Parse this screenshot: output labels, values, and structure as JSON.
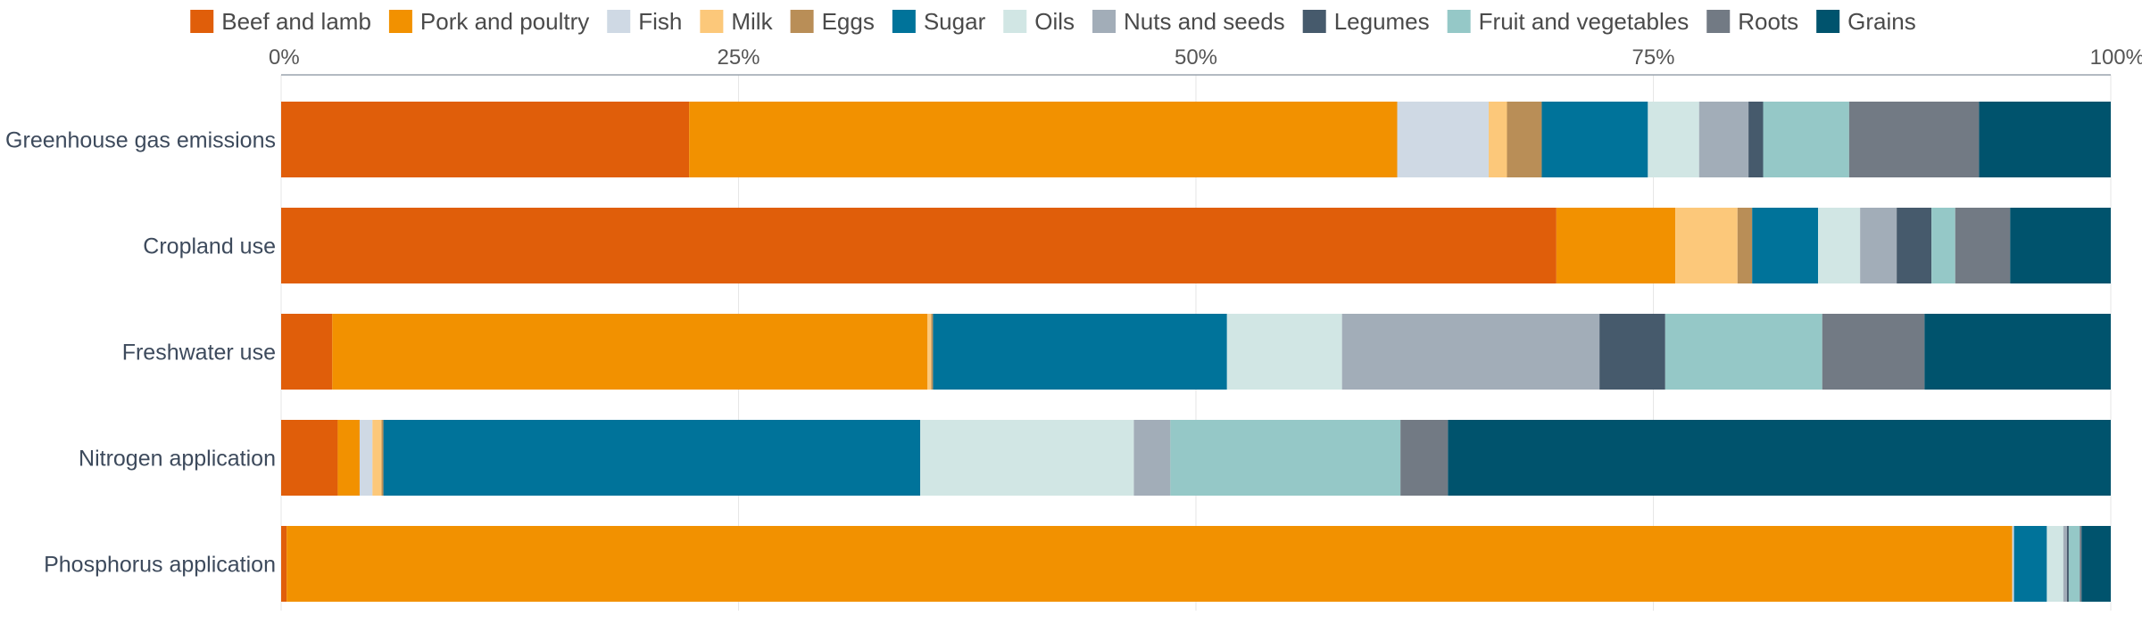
{
  "chart_data": {
    "type": "bar",
    "orientation": "horizontal",
    "stacked": true,
    "normalized": true,
    "xaxis_position": "top",
    "legend_position": "top",
    "grid": true,
    "title": "",
    "xlabel": "",
    "ylabel": "",
    "xlim": [
      0,
      100
    ],
    "ticks": [
      {
        "value": 0,
        "label": "0%"
      },
      {
        "value": 25,
        "label": "25%"
      },
      {
        "value": 50,
        "label": "50%"
      },
      {
        "value": 75,
        "label": "75%"
      },
      {
        "value": 100,
        "label": "100%"
      }
    ],
    "categories": [
      "Greenhouse gas emissions",
      "Cropland use",
      "Freshwater use",
      "Nitrogen application",
      "Phosphorus application"
    ],
    "series": [
      {
        "name": "Beef and lamb",
        "color": "#e05e0a",
        "values": [
          22.3,
          69.7,
          2.8,
          3.1,
          0.3
        ]
      },
      {
        "name": "Pork and poultry",
        "color": "#f29100",
        "values": [
          38.7,
          6.5,
          32.6,
          1.2,
          94.5
        ]
      },
      {
        "name": "Fish",
        "color": "#cfd9e4",
        "values": [
          5.0,
          0.0,
          0.0,
          0.7,
          0.1
        ]
      },
      {
        "name": "Milk",
        "color": "#fcc87a",
        "values": [
          1.0,
          3.4,
          0.2,
          0.5,
          0.0
        ]
      },
      {
        "name": "Eggs",
        "color": "#b98e57",
        "values": [
          1.9,
          0.8,
          0.1,
          0.1,
          0.0
        ]
      },
      {
        "name": "Sugar",
        "color": "#00739a",
        "values": [
          5.8,
          3.6,
          16.1,
          29.4,
          1.8
        ]
      },
      {
        "name": "Oils",
        "color": "#d1e6e4",
        "values": [
          2.8,
          2.3,
          6.3,
          11.7,
          0.9
        ]
      },
      {
        "name": "Nuts and seeds",
        "color": "#a2adb8",
        "values": [
          2.7,
          2.0,
          14.1,
          2.0,
          0.2
        ]
      },
      {
        "name": "Legumes",
        "color": "#465a6c",
        "values": [
          0.8,
          1.9,
          3.6,
          0.0,
          0.1
        ]
      },
      {
        "name": "Fruit and vegetables",
        "color": "#95c8c7",
        "values": [
          4.7,
          1.3,
          8.6,
          12.6,
          0.6
        ]
      },
      {
        "name": "Roots",
        "color": "#727a84",
        "values": [
          7.1,
          3.0,
          5.6,
          2.6,
          0.1
        ]
      },
      {
        "name": "Grains",
        "color": "#00536d",
        "values": [
          7.2,
          5.5,
          10.2,
          36.3,
          1.6
        ]
      }
    ]
  }
}
